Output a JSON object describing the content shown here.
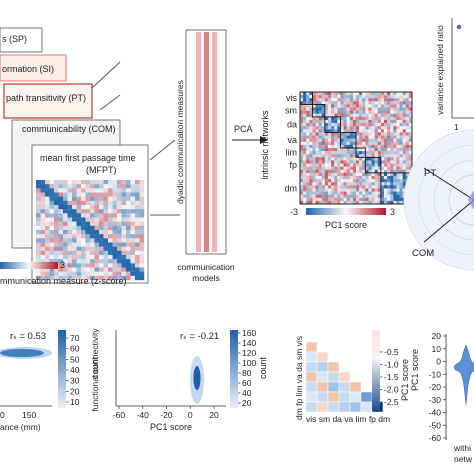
{
  "colors": {
    "diverging_neg": "#2166ac",
    "diverging_pos": "#b2182b",
    "sequential_blue": "#1f5fa8",
    "frame_red": "#d6604d",
    "accent_purple": "#6b6fd0"
  },
  "panel_a": {
    "stack_labels": [
      "s (SP)",
      "ormation (SI)",
      "path transitivity (PT)",
      "communicability (COM)",
      "mean first passage time",
      "(MFPT)"
    ],
    "colorbar_max": "3",
    "colorbar_label": "mmunication measure (z-score)"
  },
  "panel_b": {
    "vertical_label": "dyadic communication measures",
    "bottom_label_1": "communication",
    "bottom_label_2": "models",
    "pca_label": "PCA"
  },
  "panel_c": {
    "network_labels": [
      "vis",
      "sm",
      "da",
      "va",
      "lim",
      "fp",
      "dm"
    ],
    "ylabel_1": "intrinsic networks",
    "colorbar_min": "-3",
    "colorbar_max": "3",
    "colorbar_label": "PC1 score"
  },
  "panel_d": {
    "ylabel_1": "variance explained ratio",
    "x_tick_first": "1"
  },
  "panel_e": {
    "label_pt": "PT",
    "label_com": "COM"
  },
  "panel_f": {
    "stat": "rₛ = 0.53",
    "x_ticks": [
      "0",
      "150"
    ],
    "xlabel": "ance (mm)",
    "cbar_ticks": [
      "70",
      "60",
      "50",
      "40",
      "30",
      "20",
      "10"
    ],
    "cbar_label": "count"
  },
  "panel_g": {
    "stat": "rₛ = -0.21",
    "ylabel_1": "functional connectivity",
    "x_ticks": [
      "-60",
      "-40",
      "-20",
      "0",
      "20"
    ],
    "xlabel": "PC1 score",
    "cbar_ticks": [
      "160",
      "140",
      "120",
      "100",
      "80",
      "60",
      "40",
      "20"
    ],
    "cbar_label": "count"
  },
  "panel_h": {
    "row_labels": [
      "dm",
      "fp",
      "lim",
      "va",
      "da",
      "sm",
      "vis"
    ],
    "col_labels": [
      "vis",
      "sm",
      "da",
      "va",
      "lim",
      "fp",
      "dm"
    ],
    "cbar_ticks": [
      "-0.5",
      "-1.0",
      "-1.5",
      "-2.0",
      "-2.5"
    ],
    "cbar_label": "PC1 score"
  },
  "panel_i": {
    "y_ticks": [
      "20",
      "10",
      "0",
      "-10",
      "-20",
      "-30",
      "-40",
      "-50",
      "-60"
    ],
    "ylabel": "PC1 score",
    "xlabel_1": "withi",
    "xlabel_2": "netw"
  }
}
